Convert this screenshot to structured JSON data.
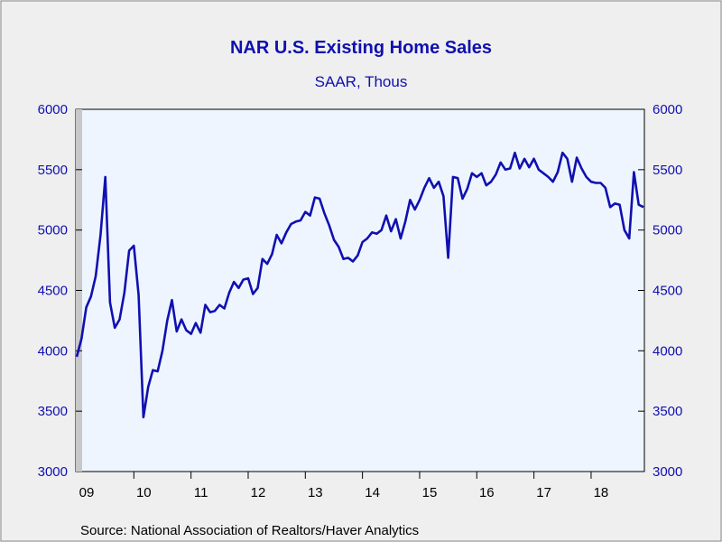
{
  "chart_data": {
    "type": "line",
    "title": "NAR U.S. Existing Home Sales",
    "subtitle": "SAAR, Thous",
    "source": "Source:  National Association of Realtors/Haver Analytics",
    "xlabels": [
      "09",
      "10",
      "11",
      "12",
      "13",
      "14",
      "15",
      "16",
      "17",
      "18"
    ],
    "ylim": [
      3000,
      6000
    ],
    "yticks": [
      3000,
      3500,
      4000,
      4500,
      5000,
      5500,
      6000
    ],
    "y_left_ticks": [
      "3000",
      "3500",
      "4000",
      "4500",
      "5000",
      "5500",
      "6000"
    ],
    "y_right_ticks": [
      "3000",
      "3500",
      "4000",
      "4500",
      "5000",
      "5500",
      "6000"
    ],
    "x_start": "2009-01",
    "colors": {
      "line": "#1010b0",
      "plot_background": "#eef5ff",
      "page_background": "#efefef"
    },
    "series": [
      {
        "values": [
          3950,
          4100,
          4360,
          4450,
          4620,
          4960,
          5440,
          4400,
          4190,
          4260,
          4480,
          4830,
          4870,
          4460,
          3450,
          3700,
          3840,
          3830,
          4000,
          4250,
          4420,
          4160,
          4260,
          4170,
          4140,
          4230,
          4150,
          4380,
          4320,
          4330,
          4380,
          4350,
          4480,
          4570,
          4520,
          4590,
          4600,
          4470,
          4520,
          4760,
          4720,
          4800,
          4960,
          4890,
          4980,
          5050,
          5070,
          5080,
          5150,
          5120,
          5270,
          5260,
          5140,
          5040,
          4920,
          4860,
          4760,
          4770,
          4740,
          4790,
          4900,
          4930,
          4980,
          4970,
          5000,
          5120,
          4990,
          5090,
          4930,
          5070,
          5250,
          5170,
          5250,
          5350,
          5430,
          5350,
          5400,
          5280,
          4770,
          5440,
          5430,
          5260,
          5340,
          5470,
          5440,
          5470,
          5370,
          5400,
          5460,
          5560,
          5500,
          5510,
          5640,
          5510,
          5590,
          5520,
          5590,
          5500,
          5470,
          5440,
          5400,
          5480,
          5640,
          5590,
          5400,
          5600,
          5510,
          5440,
          5400,
          5390,
          5390,
          5350,
          5190,
          5220,
          5210,
          5000,
          4930,
          5480,
          5210,
          5190
        ]
      }
    ]
  }
}
